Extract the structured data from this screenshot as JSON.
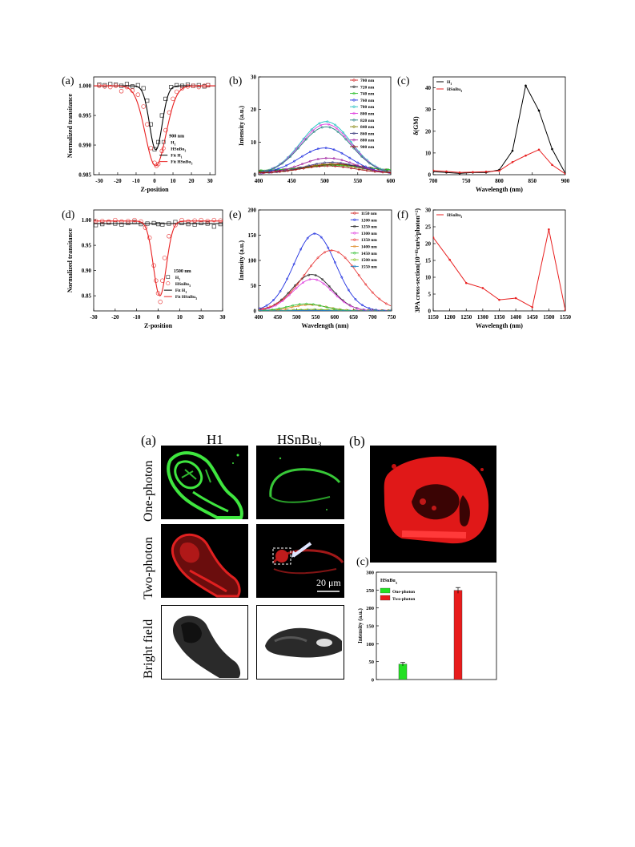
{
  "chart_data": [
    {
      "id": "a",
      "panel_label": "(a)",
      "type": "scatter",
      "xlabel": "Z-position",
      "ylabel": "Normalized transitance",
      "xlim": [
        -33,
        33
      ],
      "ylim": [
        0.985,
        1.0015
      ],
      "xticks": [
        -30,
        -20,
        -10,
        0,
        10,
        20,
        30
      ],
      "yticks": [
        0.985,
        0.99,
        0.995,
        1.0
      ],
      "ytick_labels": [
        "0.985",
        "0.990",
        "0.995",
        "1.000"
      ],
      "legend_title": "900 nm",
      "series": [
        {
          "name": "H1",
          "kind": "points",
          "marker": "square",
          "color": "#333333",
          "x": [
            -30,
            -27,
            -24,
            -21,
            -18,
            -15,
            -12,
            -9,
            -6,
            -4,
            -2,
            0,
            2,
            4,
            6,
            9,
            12,
            15,
            18,
            21,
            24,
            27,
            29
          ],
          "y": [
            1.0002,
            1.0001,
            1.0003,
            1.0002,
            1.0,
            1.0003,
            0.9999,
            1.0001,
            0.9996,
            0.9975,
            0.9935,
            0.9893,
            0.9905,
            0.995,
            0.9978,
            0.9998,
            1.0001,
            1.0,
            1.0002,
            1.0,
            1.0001,
            0.9999,
            1.0001
          ]
        },
        {
          "name": "HSnBu3",
          "kind": "points",
          "marker": "circle",
          "color": "#e84040",
          "x": [
            -30,
            -27,
            -24,
            -21,
            -18,
            -15,
            -12,
            -9,
            -6,
            -4,
            -2,
            0,
            1,
            2,
            4,
            6,
            8,
            10,
            12,
            15,
            18,
            21,
            24,
            27,
            29
          ],
          "y": [
            1.0,
            0.9999,
            0.9998,
            1.0,
            0.9991,
            0.9998,
            0.9992,
            0.9985,
            0.9965,
            0.9935,
            0.9895,
            0.987,
            0.9865,
            0.9868,
            0.989,
            0.9925,
            0.9955,
            0.9978,
            0.999,
            0.9996,
            0.9999,
            1.0,
            0.9998,
            1.0,
            1.0001
          ]
        },
        {
          "name": "Fit H1",
          "kind": "fit",
          "color": "#000000",
          "center": 0.7,
          "width": 3.4,
          "depth": 0.0108
        },
        {
          "name": "Fit HSnBu3",
          "kind": "fit",
          "color": "#e82020",
          "center": 0.6,
          "width": 5.6,
          "depth": 0.0135
        }
      ]
    },
    {
      "id": "b",
      "panel_label": "(b)",
      "type": "line",
      "xlabel": "",
      "ylabel": "Intensity (a.u.)",
      "xlim": [
        400,
        600
      ],
      "ylim": [
        0,
        30
      ],
      "xticks": [
        400,
        450,
        500,
        550,
        600
      ],
      "yticks": [
        0,
        10,
        20,
        30
      ],
      "series": [
        {
          "name": "700 nm",
          "color": "#d02020",
          "peak": 2.3,
          "center": 515,
          "width": 45,
          "base": 1.0
        },
        {
          "name": "720 nm",
          "color": "#202020",
          "peak": 2.0,
          "center": 515,
          "width": 45,
          "base": 1.1
        },
        {
          "name": "740 nm",
          "color": "#30c030",
          "peak": 1.5,
          "center": 515,
          "width": 45,
          "base": 1.3
        },
        {
          "name": "760 nm",
          "color": "#2030e0",
          "peak": 7.8,
          "center": 500,
          "width": 38,
          "base": 0.4
        },
        {
          "name": "780 nm",
          "color": "#20c0c0",
          "peak": 16.0,
          "center": 502,
          "width": 38,
          "base": 0.3
        },
        {
          "name": "800 nm",
          "color": "#e040e0",
          "peak": 15.2,
          "center": 502,
          "width": 38,
          "base": 0.3
        },
        {
          "name": "820 nm",
          "color": "#208080",
          "peak": 14.4,
          "center": 502,
          "width": 38,
          "base": 0.3
        },
        {
          "name": "840 nm",
          "color": "#808000",
          "peak": 2.6,
          "center": 510,
          "width": 40,
          "base": 0.6
        },
        {
          "name": "860 nm",
          "color": "#404080",
          "peak": 3.4,
          "center": 510,
          "width": 40,
          "base": 0.4
        },
        {
          "name": "880 nm",
          "color": "#a020a0",
          "peak": 4.8,
          "center": 505,
          "width": 40,
          "base": 0.3
        },
        {
          "name": "900 nm",
          "color": "#a01010",
          "peak": 2.2,
          "center": 505,
          "width": 40,
          "base": 0.5
        }
      ]
    },
    {
      "id": "c",
      "panel_label": "(c)",
      "type": "line",
      "xlabel": "Wavelength (nm)",
      "ylabel": "δ(GM)",
      "xlim": [
        700,
        900
      ],
      "ylim": [
        0,
        45
      ],
      "xticks": [
        700,
        750,
        800,
        850,
        900
      ],
      "yticks": [
        0,
        10,
        20,
        30,
        40
      ],
      "series": [
        {
          "name": "H1",
          "color": "#000000",
          "x": [
            700,
            720,
            740,
            760,
            780,
            800,
            820,
            840,
            860,
            880,
            900
          ],
          "y": [
            1.4,
            1.0,
            0.6,
            1.0,
            1.0,
            2.2,
            11.0,
            41.0,
            29.5,
            11.8,
            0.6
          ]
        },
        {
          "name": "HSnBu3",
          "color": "#e82020",
          "x": [
            700,
            720,
            740,
            760,
            780,
            800,
            820,
            840,
            860,
            880,
            900
          ],
          "y": [
            1.9,
            1.5,
            1.0,
            1.2,
            1.4,
            1.8,
            5.8,
            8.8,
            11.5,
            4.5,
            0.4
          ]
        }
      ]
    },
    {
      "id": "d",
      "panel_label": "(d)",
      "type": "scatter",
      "xlabel": "Z-position",
      "ylabel": "Normalized transitance",
      "xlim": [
        -30,
        30
      ],
      "ylim": [
        0.82,
        1.02
      ],
      "xticks": [
        -30,
        -20,
        -10,
        0,
        10,
        20,
        30
      ],
      "yticks": [
        0.85,
        0.9,
        0.95,
        1.0
      ],
      "ytick_labels": [
        "0.85",
        "0.90",
        "0.95",
        "1.00"
      ],
      "legend_title": "1500 nm",
      "series": [
        {
          "name": "H1",
          "kind": "points",
          "marker": "square",
          "color": "#333333",
          "x": [
            -29,
            -26,
            -23,
            -20,
            -17,
            -14,
            -11,
            -8,
            -5,
            -2,
            0,
            2,
            5,
            8,
            11,
            14,
            17,
            20,
            23,
            26,
            29
          ],
          "y": [
            0.99,
            0.992,
            0.995,
            0.993,
            0.991,
            0.994,
            0.996,
            0.992,
            0.993,
            0.994,
            0.992,
            0.991,
            0.993,
            0.996,
            0.994,
            0.992,
            0.991,
            0.994,
            0.993,
            0.987,
            0.992
          ]
        },
        {
          "name": "HSnBu3",
          "kind": "points",
          "marker": "circle",
          "color": "#e84040",
          "x": [
            -29,
            -26,
            -23,
            -20,
            -17,
            -14,
            -11,
            -8,
            -6,
            -4,
            -2,
            -1,
            0,
            1,
            2,
            3,
            5,
            8,
            11,
            14,
            17,
            20,
            23,
            26,
            29
          ],
          "y": [
            0.998,
            0.998,
            0.997,
            1.0,
            0.997,
            0.998,
            1.0,
            0.997,
            0.985,
            0.965,
            0.91,
            0.88,
            0.855,
            0.838,
            0.88,
            0.925,
            0.968,
            0.99,
            1.0,
            0.997,
            0.999,
            1.0,
            0.998,
            1.0,
            0.999
          ]
        },
        {
          "name": "Fit H1",
          "kind": "fit",
          "color": "#000000",
          "center": 0,
          "width": 3,
          "depth": 0.0,
          "level": 0.993
        },
        {
          "name": "Fit HSnBu3",
          "kind": "fit",
          "color": "#e82020",
          "center": 0.8,
          "width": 3.0,
          "depth": 0.148,
          "level": 0.998
        }
      ]
    },
    {
      "id": "e",
      "panel_label": "(e)",
      "type": "line",
      "xlabel": "Wavelength (nm)",
      "ylabel": "Intensity (a.u.)",
      "xlim": [
        400,
        750
      ],
      "ylim": [
        0,
        200
      ],
      "xticks": [
        400,
        450,
        500,
        550,
        600,
        650,
        700,
        750
      ],
      "yticks": [
        0,
        50,
        100,
        150,
        200
      ],
      "series": [
        {
          "name": "1150 nm",
          "color": "#d02020",
          "peak": 0,
          "center": 550,
          "width": 55,
          "base": 1
        },
        {
          "name": "1200 nm",
          "color": "#2030e0",
          "peak": 153,
          "center": 548,
          "width": 55,
          "base": 0
        },
        {
          "name": "1250 nm",
          "color": "#202020",
          "peak": 72,
          "center": 540,
          "width": 52,
          "base": 0
        },
        {
          "name": "1300 nm",
          "color": "#e040e0",
          "peak": 63,
          "center": 542,
          "width": 52,
          "base": 0
        },
        {
          "name": "1350 nm",
          "color": "#e83a3a",
          "peak": 120,
          "center": 592,
          "width": 70,
          "base": 0
        },
        {
          "name": "1400 nm",
          "color": "#e09030",
          "peak": 12,
          "center": 535,
          "width": 48,
          "base": 0
        },
        {
          "name": "1450 nm",
          "color": "#30c030",
          "peak": 14,
          "center": 525,
          "width": 48,
          "base": 0
        },
        {
          "name": "1500 nm",
          "color": "#80c020",
          "peak": 3,
          "center": 540,
          "width": 48,
          "base": 0
        },
        {
          "name": "1550 nm",
          "color": "#2080c0",
          "peak": 1,
          "center": 540,
          "width": 48,
          "base": 0
        }
      ]
    },
    {
      "id": "f",
      "panel_label": "(f)",
      "type": "line",
      "xlabel": "Wavelength (nm)",
      "ylabel": "3PA cross-section(10⁻⁸³cm⁶s²photon⁻²)",
      "xlim": [
        1150,
        1550
      ],
      "ylim": [
        0,
        30
      ],
      "xticks": [
        1150,
        1200,
        1250,
        1300,
        1350,
        1400,
        1450,
        1500,
        1550
      ],
      "yticks": [
        0,
        5,
        10,
        15,
        20,
        25,
        30
      ],
      "series": [
        {
          "name": "HSnBu3",
          "color": "#e82020",
          "x": [
            1150,
            1200,
            1250,
            1300,
            1350,
            1400,
            1450,
            1500,
            1550
          ],
          "y": [
            21.8,
            15.2,
            8.3,
            6.8,
            3.3,
            3.8,
            1.1,
            24.2,
            0.2
          ]
        }
      ]
    },
    {
      "id": "c2",
      "panel_label": "(c)",
      "type": "bar",
      "xlabel": "",
      "ylabel": "Intensity (a.u.)",
      "ylim": [
        0,
        300
      ],
      "yticks": [
        0,
        50,
        100,
        150,
        200,
        250,
        300
      ],
      "legend_title": "HSnBu3",
      "categories": [
        "One-photon",
        "Two-photon"
      ],
      "values": [
        43,
        249
      ],
      "errors": [
        5,
        8
      ],
      "colors": [
        "#22e022",
        "#e81c1c"
      ]
    }
  ],
  "figure2": {
    "label_a": "(a)",
    "label_b": "(b)",
    "col_h1": "H1",
    "col_hsnbu3": "HSnBu",
    "col_hsnbu3_sub": "3",
    "row_one": "One-photon",
    "row_two": "Two-photon",
    "row_bf": "Bright field",
    "scale_bar": "20 μm",
    "colors": {
      "green": "#3fe63f",
      "red": "#ff2a2a"
    }
  }
}
